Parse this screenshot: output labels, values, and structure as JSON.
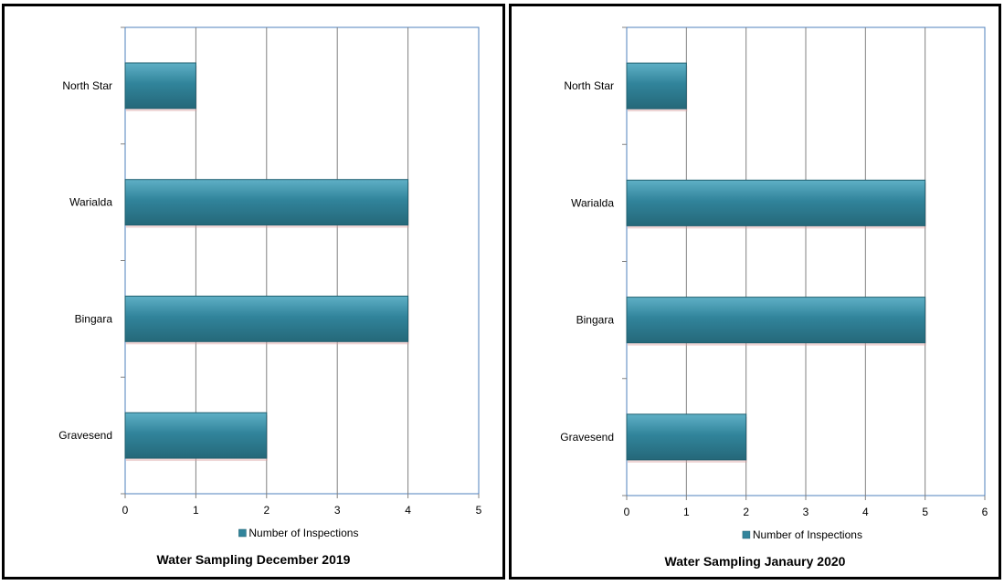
{
  "chart_data": [
    {
      "type": "bar",
      "orientation": "horizontal",
      "title": "Water Sampling December 2019",
      "categories": [
        "Gravesend",
        "Bingara",
        "Warialda",
        "North Star"
      ],
      "series": [
        {
          "name": "Number of Inspections",
          "values": [
            2,
            4,
            4,
            1
          ],
          "color": "#31849b"
        }
      ],
      "xlim": [
        0,
        5
      ],
      "xticks": [
        "0",
        "1",
        "2",
        "3",
        "4",
        "5"
      ],
      "grid": true,
      "legend": "bottom"
    },
    {
      "type": "bar",
      "orientation": "horizontal",
      "title": "Water Sampling Janaury 2020",
      "categories": [
        "Gravesend",
        "Bingara",
        "Warialda",
        "North Star"
      ],
      "series": [
        {
          "name": "Number of Inspections",
          "values": [
            2,
            5,
            5,
            1
          ],
          "color": "#31849b"
        }
      ],
      "xlim": [
        0,
        6
      ],
      "xticks": [
        "0",
        "1",
        "2",
        "3",
        "4",
        "5",
        "6"
      ],
      "grid": true,
      "legend": "bottom"
    }
  ]
}
